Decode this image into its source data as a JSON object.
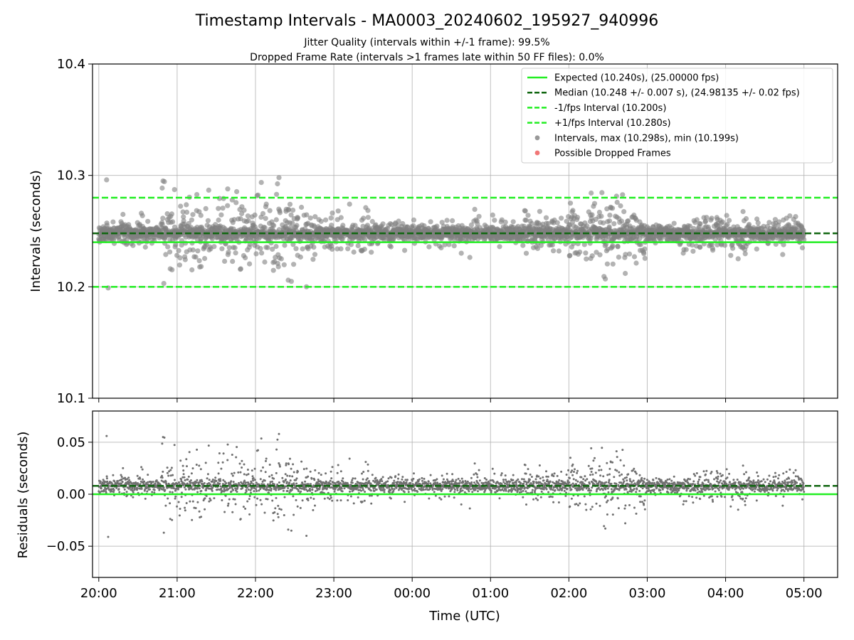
{
  "chart_data": {
    "title": "Timestamp Intervals - MA0003_20240602_195927_940996",
    "subtitles": [
      "Jitter Quality (intervals within +/-1 frame): 99.5%",
      "Dropped Frame Rate (intervals >1 frames late within 50 FF files): 0.0%"
    ],
    "x_axis": {
      "label": "Time (UTC)",
      "ticks": [
        "20:00",
        "21:00",
        "22:00",
        "23:00",
        "00:00",
        "01:00",
        "02:00",
        "03:00",
        "04:00",
        "05:00"
      ],
      "range_hours": [
        -0.08,
        9.43
      ]
    },
    "panels": [
      {
        "type": "scatter",
        "ylabel": "Intervals (seconds)",
        "ylim": [
          10.1,
          10.4
        ],
        "yticks": [
          10.1,
          10.2,
          10.3,
          10.4
        ],
        "ytick_labels": [
          "10.1",
          "10.2",
          "10.3",
          "10.4"
        ],
        "grid": true,
        "lines": [
          {
            "name": "Expected (10.240s), (25.00000 fps)",
            "y": 10.24,
            "color": "#22ee22",
            "style": "solid"
          },
          {
            "name": "Median (10.248 +/- 0.007 s), (24.98135 +/- 0.02 fps)",
            "y": 10.248,
            "color": "#106610",
            "style": "dashed"
          },
          {
            "name": "-1/fps Interval (10.200s)",
            "y": 10.2,
            "color": "#22ee22",
            "style": "dashed"
          },
          {
            "name": "+1/fps Interval (10.280s)",
            "y": 10.28,
            "color": "#22ee22",
            "style": "dashed"
          }
        ],
        "series": [
          {
            "name": "Intervals, max (10.298s), min (10.199s)",
            "color": "#808080",
            "max": 10.298,
            "min": 10.199,
            "count": 3150
          },
          {
            "name": "Possible Dropped Frames",
            "color": "#ee5555",
            "count": 0
          }
        ],
        "legend": "top-right"
      },
      {
        "type": "scatter",
        "ylabel": "Residuals (seconds)",
        "ylim": [
          -0.08,
          0.08
        ],
        "yticks": [
          -0.05,
          0.0,
          0.05
        ],
        "ytick_labels": [
          "−0.05",
          "0.00",
          "0.05"
        ],
        "grid": true,
        "lines": [
          {
            "y": 0.0,
            "color": "#22ee22",
            "style": "solid"
          },
          {
            "y": 0.008,
            "color": "#106610",
            "style": "dashed"
          }
        ],
        "series": [
          {
            "color": "#707070",
            "count": 3150
          }
        ]
      }
    ],
    "activity_profile": [
      {
        "from": 0.0,
        "to": 0.8,
        "spread": 0.35
      },
      {
        "from": 0.8,
        "to": 2.7,
        "spread": 1.0
      },
      {
        "from": 2.7,
        "to": 3.5,
        "spread": 0.55
      },
      {
        "from": 3.5,
        "to": 4.2,
        "spread": 0.3
      },
      {
        "from": 4.2,
        "to": 4.9,
        "spread": 0.45
      },
      {
        "from": 4.9,
        "to": 5.4,
        "spread": 0.35
      },
      {
        "from": 5.4,
        "to": 6.0,
        "spread": 0.6
      },
      {
        "from": 6.0,
        "to": 7.0,
        "spread": 0.9
      },
      {
        "from": 7.0,
        "to": 7.4,
        "spread": 0.3
      },
      {
        "from": 7.4,
        "to": 8.5,
        "spread": 0.55
      },
      {
        "from": 8.5,
        "to": 9.0,
        "spread": 0.4
      }
    ]
  }
}
